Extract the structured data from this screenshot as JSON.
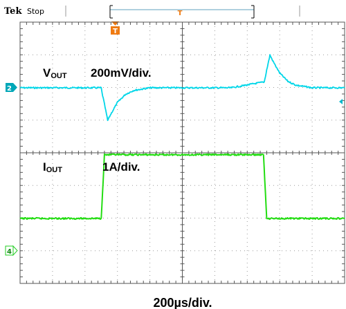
{
  "header": {
    "brand": "Tek",
    "status": "Stop",
    "trigger_marker": "T"
  },
  "channels": {
    "ch2_marker": "2",
    "ch4_marker": "4",
    "ch2_color": "#00d6e8",
    "ch4_color": "#22dd11"
  },
  "labels": {
    "vout_main": "V",
    "vout_sub": "OUT",
    "vout_scale": "200mV/div.",
    "iout_main": "I",
    "iout_sub": "OUT",
    "iout_scale": "1A/div.",
    "timebase": "200µs/div."
  },
  "chart_data": {
    "type": "line",
    "title": "",
    "xlabel": "200µs/div.",
    "x_unit": "µs",
    "xlim": [
      0,
      2000
    ],
    "grid": true,
    "grid_divisions": {
      "horizontal": 10,
      "vertical": 8
    },
    "series": [
      {
        "name": "VOUT",
        "channel": 2,
        "scale": "200mV/div.",
        "ylim_div": [
          -1,
          2
        ],
        "x": [
          0,
          500,
          505,
          520,
          540,
          560,
          600,
          650,
          700,
          800,
          1000,
          1200,
          1300,
          1505,
          1520,
          1540,
          1560,
          1600,
          1650,
          1700,
          1800,
          2000
        ],
        "values": [
          0,
          0,
          -0.15,
          -0.5,
          -1.0,
          -0.8,
          -0.45,
          -0.2,
          -0.08,
          0,
          0,
          0,
          0,
          0.18,
          0.55,
          1.0,
          0.8,
          0.45,
          0.2,
          0.08,
          0,
          0
        ]
      },
      {
        "name": "IOUT",
        "channel": 4,
        "scale": "1A/div.",
        "ylim_div": [
          -2,
          2
        ],
        "x": [
          0,
          500,
          520,
          1500,
          1520,
          2000
        ],
        "values": [
          0,
          0,
          1.95,
          1.95,
          0,
          0
        ]
      }
    ]
  }
}
